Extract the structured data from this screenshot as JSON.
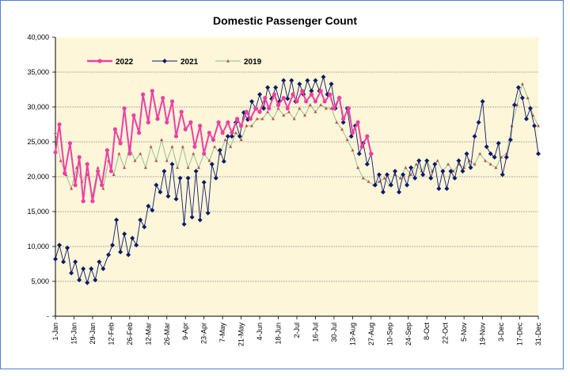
{
  "chart_data": {
    "type": "line",
    "title": "Domestic Passenger Count",
    "xlabel": "",
    "ylabel": "",
    "ylim": [
      0,
      40000
    ],
    "yticks": [
      "40,000",
      "35,000",
      "30,000",
      "25,000",
      "20,000",
      "15,000",
      "10,000",
      "5,000",
      "-"
    ],
    "ytick_values": [
      40000,
      35000,
      30000,
      25000,
      20000,
      15000,
      10000,
      5000,
      0
    ],
    "xtick_labels": [
      "1-Jan",
      "15-Jan",
      "29-Jan",
      "12-Feb",
      "26-Feb",
      "12-Mar",
      "26-Mar",
      "9-Apr",
      "23-Apr",
      "7-May",
      "21-May",
      "4-Jun",
      "18-Jun",
      "2-Jul",
      "16-Jul",
      "30-Jul",
      "13-Aug",
      "27-Aug",
      "10-Sep",
      "24-Sep",
      "8-Oct",
      "22-Oct",
      "5-Nov",
      "19-Nov",
      "3-Dec",
      "17-Dec",
      "31-Dec"
    ],
    "xtick_days": [
      1,
      15,
      29,
      43,
      57,
      71,
      85,
      99,
      113,
      127,
      141,
      155,
      169,
      183,
      197,
      211,
      225,
      239,
      253,
      267,
      281,
      295,
      309,
      323,
      337,
      351,
      365
    ],
    "grid": "horizontal",
    "background": "#fdf6d8",
    "legend_position": "top-left",
    "series": [
      {
        "name": "2022",
        "color": "#ee3fa6",
        "marker": "circle",
        "x": [
          1,
          4,
          8,
          12,
          16,
          19,
          22,
          25,
          29,
          33,
          36,
          40,
          43,
          46,
          50,
          53,
          57,
          60,
          64,
          67,
          71,
          74,
          78,
          82,
          85,
          89,
          92,
          96,
          99,
          103,
          106,
          110,
          113,
          117,
          120,
          124,
          127,
          131,
          134,
          138,
          141,
          145,
          148,
          152,
          155,
          159,
          162,
          166,
          169,
          173,
          176,
          180,
          183,
          187,
          190,
          194,
          197,
          201,
          204,
          208,
          211,
          215,
          218,
          222,
          225,
          229,
          232,
          236,
          239
        ],
        "y": [
          23500,
          27500,
          20500,
          24800,
          18800,
          22800,
          16500,
          21800,
          16500,
          20800,
          18800,
          23800,
          20800,
          26800,
          24800,
          29800,
          23300,
          28800,
          26300,
          31800,
          27800,
          32300,
          28300,
          31300,
          27800,
          30800,
          25800,
          29300,
          26800,
          27800,
          24300,
          27300,
          23300,
          26300,
          25300,
          27800,
          26300,
          27800,
          26300,
          28300,
          27300,
          29300,
          28300,
          29800,
          29300,
          31300,
          29800,
          31800,
          30300,
          31300,
          29800,
          31800,
          30800,
          32300,
          30800,
          31800,
          30800,
          32300,
          30800,
          31800,
          29800,
          31300,
          28300,
          29800,
          26300,
          27800,
          24300,
          25800,
          23300
        ]
      },
      {
        "name": "2021",
        "color": "#0a1a6b",
        "marker": "diamond",
        "x": [
          1,
          4,
          7,
          10,
          13,
          16,
          19,
          22,
          25,
          28,
          31,
          34,
          37,
          41,
          44,
          47,
          50,
          53,
          56,
          59,
          62,
          65,
          68,
          71,
          74,
          77,
          80,
          83,
          86,
          89,
          92,
          95,
          98,
          101,
          104,
          107,
          110,
          113,
          116,
          119,
          122,
          125,
          128,
          131,
          134,
          137,
          140,
          143,
          146,
          149,
          152,
          155,
          158,
          161,
          164,
          167,
          170,
          173,
          176,
          179,
          182,
          185,
          188,
          191,
          194,
          197,
          200,
          203,
          206,
          209,
          212,
          215,
          218,
          221,
          224,
          227,
          230,
          233,
          236,
          239,
          242,
          245,
          248,
          251,
          254,
          257,
          260,
          263,
          266,
          269,
          272,
          275,
          278,
          281,
          284,
          287,
          290,
          293,
          296,
          299,
          302,
          305,
          308,
          311,
          314,
          317,
          320,
          323,
          326,
          329,
          332,
          335,
          338,
          341,
          344,
          347,
          350,
          353,
          356,
          359,
          362,
          365
        ],
        "y": [
          8200,
          10200,
          7800,
          9800,
          6200,
          7800,
          5200,
          6800,
          4800,
          6800,
          5200,
          7800,
          6800,
          8800,
          10200,
          13800,
          9200,
          11800,
          8800,
          11200,
          10200,
          13800,
          12800,
          15800,
          15200,
          18800,
          17800,
          20800,
          17200,
          21800,
          16800,
          19800,
          13200,
          19800,
          14200,
          20800,
          13800,
          19200,
          14800,
          21800,
          19800,
          23800,
          22200,
          25800,
          25800,
          27800,
          25800,
          29200,
          28200,
          30800,
          29800,
          31800,
          29800,
          32800,
          31200,
          32800,
          30800,
          33800,
          31200,
          33800,
          30800,
          33300,
          31800,
          33800,
          32300,
          33800,
          32300,
          34300,
          31800,
          33300,
          29800,
          31300,
          27800,
          29800,
          25800,
          27300,
          23300,
          24800,
          21800,
          23300,
          18800,
          20300,
          17800,
          20300,
          18800,
          20800,
          17800,
          20300,
          18800,
          21300,
          19800,
          22300,
          20300,
          22300,
          19800,
          21800,
          18300,
          20800,
          18300,
          20800,
          19800,
          22300,
          20800,
          23300,
          21300,
          25800,
          27800,
          30800,
          24300,
          23300,
          22800,
          24800,
          20300,
          22800,
          25300,
          30300,
          32800,
          31300,
          28300,
          29800,
          27300,
          23300
        ]
      },
      {
        "name": "2019",
        "color": "#8ab98a",
        "marker": "triangle",
        "x": [
          1,
          5,
          9,
          13,
          17,
          21,
          25,
          29,
          33,
          37,
          41,
          45,
          49,
          53,
          57,
          61,
          65,
          69,
          73,
          77,
          81,
          85,
          89,
          93,
          97,
          101,
          105,
          109,
          113,
          117,
          121,
          125,
          129,
          133,
          137,
          141,
          145,
          149,
          153,
          157,
          161,
          165,
          169,
          173,
          177,
          181,
          185,
          189,
          193,
          197,
          201,
          205,
          209,
          213,
          217,
          221,
          225,
          229,
          233,
          237,
          241,
          245,
          249,
          253,
          257,
          261,
          265,
          269,
          273,
          277,
          281,
          285,
          289,
          293,
          297,
          301,
          305,
          309,
          313,
          317,
          321,
          325,
          329,
          333,
          337,
          341,
          345,
          349,
          353,
          357,
          361,
          365
        ],
        "y": [
          26300,
          22300,
          20300,
          18300,
          21300,
          19300,
          20300,
          17300,
          21300,
          18300,
          22300,
          20300,
          23300,
          21300,
          24300,
          22300,
          23300,
          21300,
          24300,
          22300,
          25300,
          22300,
          24300,
          21300,
          24300,
          21300,
          23300,
          21300,
          23300,
          22300,
          24300,
          23300,
          25300,
          24300,
          26300,
          25300,
          27300,
          27300,
          28300,
          28300,
          29300,
          28300,
          29800,
          28800,
          29300,
          28300,
          29800,
          28800,
          30300,
          29300,
          30300,
          29800,
          29800,
          27800,
          26800,
          25300,
          23800,
          21300,
          19800,
          19300,
          18800,
          19300,
          19800,
          18800,
          20300,
          19800,
          21300,
          20300,
          21800,
          20800,
          22300,
          20800,
          22300,
          20800,
          21800,
          20800,
          21800,
          21300,
          22300,
          21800,
          23300,
          22300,
          21800,
          21300,
          22800,
          23300,
          27300,
          30300,
          33300,
          31300,
          28800,
          27300
        ]
      }
    ]
  }
}
